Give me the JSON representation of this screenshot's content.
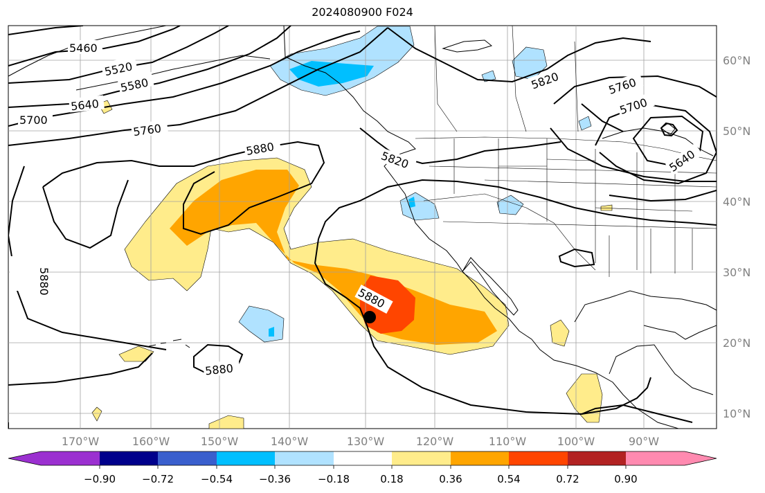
{
  "title": "2024080900 F024",
  "map": {
    "lon_ticks": [
      "170°W",
      "160°W",
      "150°W",
      "140°W",
      "130°W",
      "120°W",
      "110°W",
      "100°W",
      "90°W"
    ],
    "lat_ticks": [
      "60°N",
      "50°N",
      "40°N",
      "30°N",
      "20°N",
      "10°N"
    ],
    "contour_labels": [
      "5460",
      "5520",
      "5580",
      "5640",
      "5700",
      "5760",
      "5880",
      "5820",
      "5820",
      "5760",
      "5700",
      "5640",
      "5880",
      "5880",
      "5880"
    ],
    "marker": "storm-center-dot"
  },
  "colorbar": {
    "ticks": [
      "−0.90",
      "−0.72",
      "−0.54",
      "−0.36",
      "−0.18",
      "0.18",
      "0.36",
      "0.54",
      "0.72",
      "0.90"
    ],
    "colors": [
      "#9b30d0",
      "#00008b",
      "#3a5fcd",
      "#00bfff",
      "#b0e2ff",
      "#ffffff",
      "#ffec8b",
      "#ffa500",
      "#ff4500",
      "#b22222",
      "#ff8ab0"
    ]
  }
}
